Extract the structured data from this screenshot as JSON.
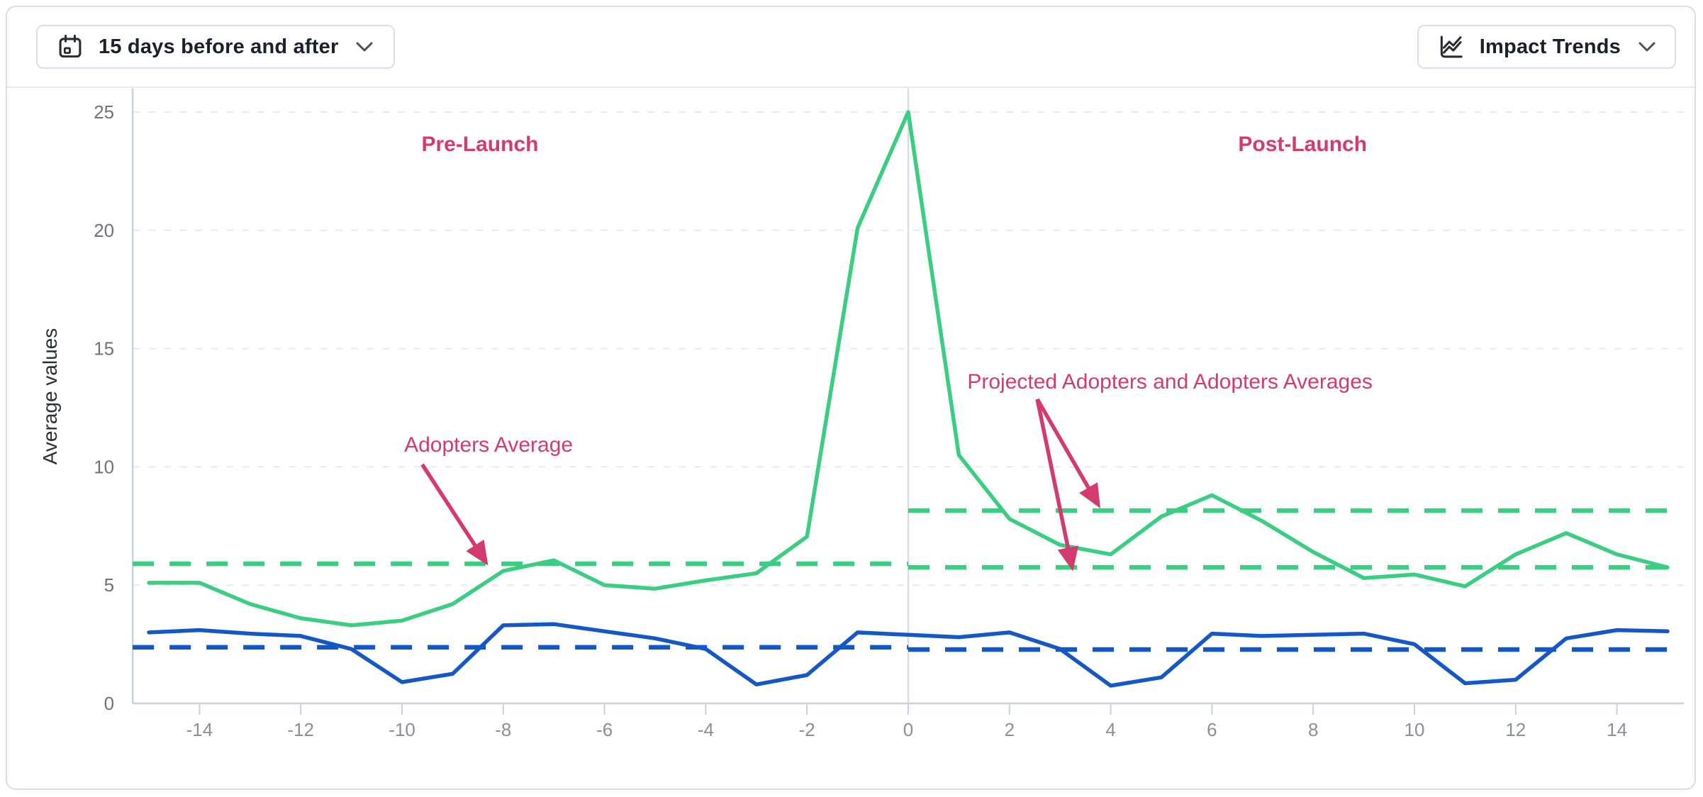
{
  "toolbar": {
    "date_range_button": {
      "label": "15 days before and after",
      "icon": "calendar-icon",
      "chevron": "chevron-down-icon"
    },
    "trends_button": {
      "label": "Impact Trends",
      "icon": "trend-lines-icon",
      "chevron": "chevron-down-icon"
    }
  },
  "colors": {
    "green": "#3bcd82",
    "blue": "#1458c8",
    "pink": "#d53a6f",
    "grid": "#e8eaee",
    "axis": "#c7d1e3",
    "zero_line": "#d8dbe2",
    "x_tick_label": "#8a909b",
    "y_tick_label": "#6d727c",
    "axis_title": "#2b3036",
    "card_border": "#d8dde7"
  },
  "chart_data": {
    "type": "line",
    "title": "",
    "xlabel": "",
    "ylabel": "Average values",
    "x_range": [
      -15.32,
      15.32
    ],
    "y_range": [
      0,
      26
    ],
    "x_ticks": [
      -14,
      -12,
      -10,
      -8,
      -6,
      -4,
      -2,
      0,
      2,
      4,
      6,
      8,
      10,
      12,
      14
    ],
    "y_ticks": [
      0,
      5,
      10,
      15,
      20,
      25
    ],
    "grid_values": [
      5,
      10,
      15,
      20,
      25
    ],
    "launch_divider_x": 0,
    "x": [
      -15,
      -14,
      -13,
      -12,
      -11,
      -10,
      -9,
      -8,
      -7,
      -6,
      -5,
      -4,
      -3,
      -2,
      -1,
      0,
      1,
      2,
      3,
      4,
      5,
      6,
      7,
      8,
      9,
      10,
      11,
      12,
      13,
      14,
      15
    ],
    "series": [
      {
        "name": "adopters-green",
        "color": "#3bcd82",
        "values": [
          5.1,
          5.1,
          4.2,
          3.6,
          3.3,
          3.5,
          4.2,
          5.6,
          6.05,
          5.0,
          4.85,
          5.2,
          5.5,
          7.05,
          20.1,
          25.0,
          10.5,
          7.8,
          6.7,
          6.3,
          7.9,
          8.8,
          7.7,
          6.4,
          5.3,
          5.45,
          4.95,
          6.3,
          7.2,
          6.3,
          5.75
        ]
      },
      {
        "name": "comparison-blue",
        "color": "#1458c8",
        "values": [
          3.0,
          3.1,
          2.95,
          2.85,
          2.3,
          0.9,
          1.25,
          3.3,
          3.35,
          3.05,
          2.75,
          2.3,
          0.8,
          1.2,
          3.0,
          2.9,
          2.8,
          3.0,
          2.3,
          0.75,
          1.1,
          2.95,
          2.85,
          2.9,
          2.95,
          2.5,
          0.85,
          1.0,
          2.75,
          3.1,
          3.05
        ]
      }
    ],
    "reference_lines": [
      {
        "name": "adopters-average-pre-launch",
        "value": 5.9,
        "x_from": -15.32,
        "x_to": 0,
        "color": "#3bcd82",
        "style": "dashed"
      },
      {
        "name": "projected-adopters-average-post-launch",
        "value": 8.15,
        "x_from": 0,
        "x_to": 15.05,
        "color": "#3bcd82",
        "style": "dashed"
      },
      {
        "name": "adopters-average-post-launch",
        "value": 5.75,
        "x_from": 0,
        "x_to": 15.05,
        "color": "#3bcd82",
        "style": "dashed"
      },
      {
        "name": "blue-average-pre-launch",
        "value": 2.37,
        "x_from": -15.32,
        "x_to": 0,
        "color": "#1458c8",
        "style": "dashed"
      },
      {
        "name": "blue-average-post-launch",
        "value": 2.28,
        "x_from": 0,
        "x_to": 15.05,
        "color": "#1458c8",
        "style": "dashed"
      }
    ],
    "annotations": [
      {
        "name": "pre-launch-label",
        "text": "Pre-Launch",
        "x": -8.46,
        "y": 23.65,
        "bold": true,
        "color": "#d53a6f"
      },
      {
        "name": "post-launch-label",
        "text": "Post-Launch",
        "x": 7.79,
        "y": 23.65,
        "bold": true,
        "color": "#d53a6f"
      },
      {
        "name": "adopters-average-label",
        "text": "Adopters Average",
        "x": -8.29,
        "y": 10.94,
        "bold": false,
        "color": "#d53a6f"
      },
      {
        "name": "projected-and-adopters-averages-label",
        "text": "Projected Adopters and Adopters Averages",
        "x": 5.17,
        "y": 13.61,
        "bold": false,
        "color": "#d53a6f"
      }
    ],
    "arrows": [
      {
        "name": "arrow-to-pre-launch-adopters-average",
        "from_x": -9.6,
        "from_y": 10.1,
        "to_x": -8.36,
        "to_y": 6.03,
        "color": "#d53a6f"
      },
      {
        "name": "arrow-to-projected-adopters-average",
        "from_x": 2.55,
        "from_y": 12.86,
        "to_x": 3.74,
        "to_y": 8.45,
        "color": "#d53a6f"
      },
      {
        "name": "arrow-to-post-launch-adopters-average",
        "from_x": 2.55,
        "from_y": 12.86,
        "to_x": 3.23,
        "to_y": 5.82,
        "color": "#d53a6f"
      }
    ],
    "legend": "none",
    "grid": "horizontal-dashed"
  }
}
